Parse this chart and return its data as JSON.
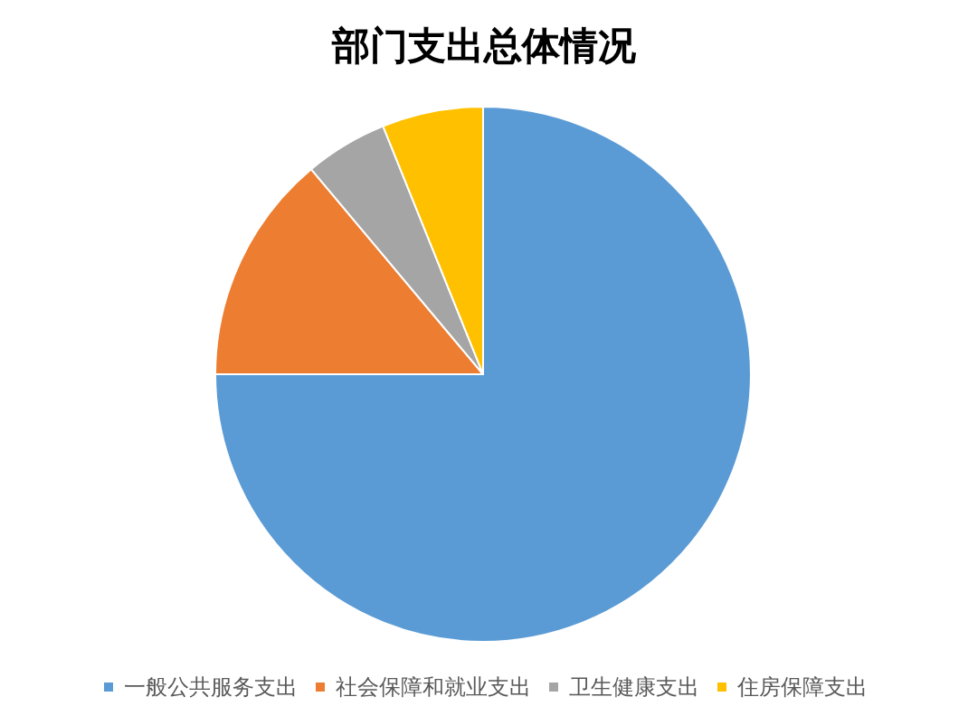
{
  "chart_data": {
    "type": "pie",
    "title": "部门支出总体情况",
    "categories": [
      "一般公共服务支出",
      "社会保障和就业支出",
      "卫生健康支出",
      "住房保障支出"
    ],
    "values": [
      75.0,
      13.9,
      5.0,
      6.1
    ],
    "colors": [
      "#5b9bd5",
      "#ed7d31",
      "#a5a5a5",
      "#ffc000"
    ],
    "legend": "bottom"
  }
}
